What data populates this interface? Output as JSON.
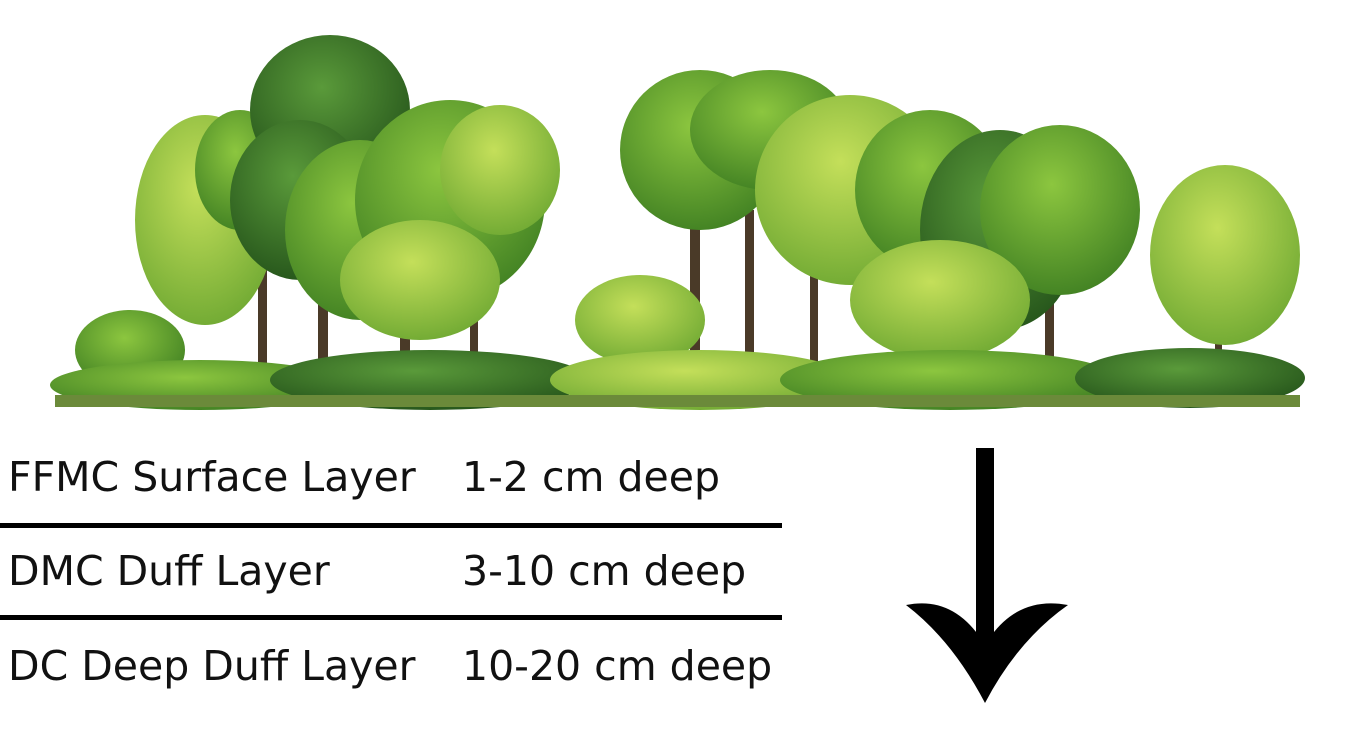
{
  "layers": [
    {
      "name": "FFMC Surface Layer",
      "depth": "1-2 cm deep"
    },
    {
      "name": "DMC Duff Layer",
      "depth": "3-10 cm deep"
    },
    {
      "name": "DC Deep Duff Layer",
      "depth": "10-20 cm deep"
    }
  ],
  "colors": {
    "text": "#111111",
    "lines": "#000000",
    "foliage_dark": "#2f6b1f",
    "foliage_mid": "#4f9a2a",
    "foliage_light": "#8cc63f"
  },
  "icons": {
    "arrow": "down-arrow-icon",
    "illustration": "forest-illustration"
  }
}
